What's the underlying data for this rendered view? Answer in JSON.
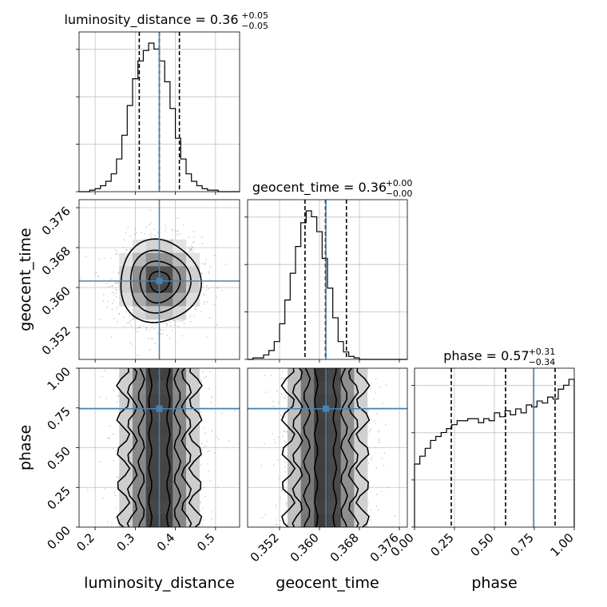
{
  "figure": {
    "background": "#ffffff"
  },
  "chart_data": {
    "type": "corner",
    "parameters": [
      "luminosity_distance",
      "geocent_time",
      "phase"
    ],
    "colors": {
      "truth": "#4682b4",
      "hist": "#000000",
      "contour": "#000000",
      "points": "#9a9a9a",
      "grid": "#c0c0c0"
    },
    "titles": [
      {
        "base": "luminosity_distance = 0.36",
        "sup": "+0.05",
        "sub": "−0.05"
      },
      {
        "base": "geocent_time = 0.36",
        "sup": "+0.00",
        "sub": "−0.00"
      },
      {
        "base": "phase = 0.57",
        "sup": "+0.31",
        "sub": "−0.34"
      }
    ],
    "axis_labels": {
      "x": [
        "luminosity_distance",
        "geocent_time",
        "phase"
      ],
      "y": [
        "geocent_time",
        "phase"
      ]
    },
    "ranges": [
      [
        0.16,
        0.56
      ],
      [
        0.3456,
        0.3776
      ],
      [
        0.0,
        1.0
      ]
    ],
    "ticks": [
      {
        "values": [
          0.2,
          0.3,
          0.4,
          0.5
        ],
        "labels": [
          "0.2",
          "0.3",
          "0.4",
          "0.5"
        ]
      },
      {
        "values": [
          0.352,
          0.36,
          0.368,
          0.376
        ],
        "labels": [
          "0.352",
          "0.360",
          "0.368",
          "0.376"
        ]
      },
      {
        "values": [
          0.0,
          0.25,
          0.5,
          0.75,
          1.0
        ],
        "labels": [
          "0.00",
          "0.25",
          "0.50",
          "0.75",
          "1.00"
        ]
      }
    ],
    "truths": [
      0.36,
      0.3613,
      0.745
    ],
    "quantiles": [
      {
        "lo": 0.31,
        "median": 0.36,
        "hi": 0.41
      },
      {
        "lo": 0.3571,
        "median": 0.3612,
        "hi": 0.3654
      },
      {
        "lo": 0.23,
        "median": 0.57,
        "hi": 0.88
      }
    ],
    "histograms": [
      {
        "bin_edges": [
          0.16,
          0.56
        ],
        "counts": [
          0,
          0,
          1,
          2,
          4,
          7,
          12,
          22,
          38,
          58,
          76,
          88,
          95,
          100,
          96,
          88,
          74,
          56,
          36,
          22,
          12,
          7,
          4,
          2,
          1,
          1,
          0,
          0,
          0,
          0
        ]
      },
      {
        "bin_edges": [
          0.3456,
          0.3776
        ],
        "counts": [
          0,
          1,
          1,
          3,
          6,
          12,
          24,
          40,
          58,
          76,
          92,
          100,
          96,
          86,
          68,
          48,
          28,
          12,
          5,
          2,
          1,
          0,
          0,
          0,
          0,
          0,
          0,
          0,
          0,
          0
        ]
      },
      {
        "bin_edges": [
          0.0,
          1.0
        ],
        "counts": [
          32,
          36,
          40,
          44,
          46,
          48,
          50,
          52,
          54,
          54,
          55,
          55,
          53,
          55,
          54,
          58,
          56,
          59,
          57,
          60,
          58,
          62,
          61,
          64,
          63,
          66,
          65,
          70,
          72,
          75
        ]
      }
    ]
  }
}
